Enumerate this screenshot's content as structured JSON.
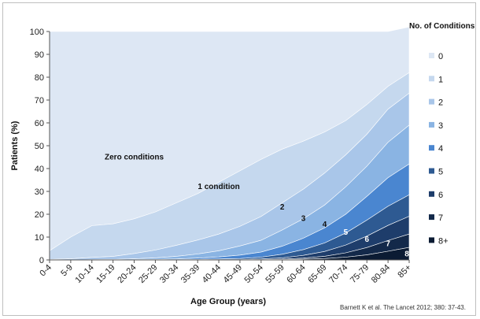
{
  "chart_data": {
    "type": "area",
    "stacked": true,
    "ylabel": "Patients (%)",
    "xlabel": "Age Group (years)",
    "ylim": [
      0,
      100
    ],
    "yticks": [
      0,
      10,
      20,
      30,
      40,
      50,
      60,
      70,
      80,
      90,
      100
    ],
    "categories": [
      "0-4",
      "5-9",
      "10-14",
      "15-19",
      "20-24",
      "25-29",
      "30-34",
      "35-39",
      "40-44",
      "45-49",
      "50-54",
      "55-59",
      "60-64",
      "65-69",
      "70-74",
      "75-79",
      "80-84",
      "85+"
    ],
    "legend_title": "No. of Conditions",
    "legend_position": "right",
    "series": [
      {
        "name": "8+",
        "color": "#0b1b33",
        "values": [
          0,
          0,
          0,
          0,
          0,
          0,
          0,
          0,
          0,
          0,
          0,
          0.1,
          0.3,
          0.6,
          1.2,
          2.2,
          3.8,
          5.5
        ]
      },
      {
        "name": "7",
        "color": "#13294a",
        "values": [
          0,
          0,
          0,
          0,
          0,
          0,
          0,
          0,
          0,
          0,
          0.1,
          0.2,
          0.5,
          1.0,
          1.9,
          3.2,
          4.7,
          5.8
        ]
      },
      {
        "name": "6",
        "color": "#1e3d6b",
        "values": [
          0,
          0,
          0,
          0,
          0,
          0,
          0,
          0,
          0.1,
          0.1,
          0.3,
          0.6,
          1.2,
          2.1,
          3.4,
          5.0,
          6.6,
          7.8
        ]
      },
      {
        "name": "5",
        "color": "#2e5a92",
        "values": [
          0,
          0,
          0,
          0,
          0,
          0,
          0.1,
          0.2,
          0.3,
          0.5,
          0.8,
          1.6,
          2.5,
          3.7,
          5.3,
          7.0,
          8.4,
          9.4
        ]
      },
      {
        "name": "4",
        "color": "#4a86d0",
        "values": [
          0,
          0,
          0,
          0,
          0.1,
          0.2,
          0.3,
          0.6,
          0.9,
          1.5,
          2.2,
          3.5,
          5.0,
          6.6,
          8.2,
          10.4,
          12.5,
          13.5
        ]
      },
      {
        "name": "3",
        "color": "#8ab4e3",
        "values": [
          0,
          0,
          0.1,
          0.2,
          0.4,
          0.7,
          1.2,
          1.8,
          2.7,
          4.0,
          5.2,
          7.1,
          8.5,
          10.0,
          12.0,
          13.2,
          15.5,
          17.0
        ]
      },
      {
        "name": "2",
        "color": "#a9c6e9",
        "values": [
          0.2,
          0.5,
          1.0,
          1.3,
          2.3,
          3.4,
          4.8,
          6.1,
          7.3,
          8.6,
          10.4,
          11.9,
          13.0,
          14.0,
          14.0,
          14.0,
          14.5,
          14.0
        ]
      },
      {
        "name": "1",
        "color": "#c5d8ee",
        "values": [
          3.8,
          9.5,
          13.9,
          14.3,
          15.2,
          16.7,
          18.6,
          20.3,
          22.7,
          24.3,
          25.0,
          23.5,
          21.0,
          18.0,
          15.0,
          13.0,
          10.0,
          9.0
        ]
      },
      {
        "name": "0",
        "color": "#dde7f4",
        "values": [
          96.0,
          90.0,
          85.0,
          84.2,
          82.0,
          79.0,
          75.0,
          71.0,
          66.0,
          61.0,
          56.0,
          51.5,
          48.0,
          44.0,
          39.0,
          32.0,
          24.0,
          20.0
        ]
      }
    ],
    "legend_order": [
      "0",
      "1",
      "2",
      "3",
      "4",
      "5",
      "6",
      "7",
      "8+"
    ],
    "annotations": [
      {
        "text": "Zero conditions",
        "category": "20-24",
        "y": 44,
        "color": "#111111"
      },
      {
        "text": "1 condition",
        "category": "40-44",
        "y": 31,
        "color": "#111111"
      },
      {
        "text": "2",
        "category": "55-59",
        "y": 22,
        "color": "#111111"
      },
      {
        "text": "3",
        "category": "60-64",
        "y": 17,
        "color": "#111111"
      },
      {
        "text": "4",
        "category": "65-69",
        "y": 14.5,
        "color": "#111111"
      },
      {
        "text": "5",
        "category": "70-74",
        "y": 11,
        "color": "#ffffff"
      },
      {
        "text": "6",
        "category": "75-79",
        "y": 8,
        "color": "#ffffff"
      },
      {
        "text": "7",
        "category": "80-84",
        "y": 6,
        "color": "#ffffff"
      },
      {
        "text": "8+",
        "category": "85+",
        "y": 1.5,
        "color": "#ffffff"
      }
    ],
    "grid": false
  },
  "credit": "Barnett K et al. The Lancet 2012; 380: 37-43."
}
